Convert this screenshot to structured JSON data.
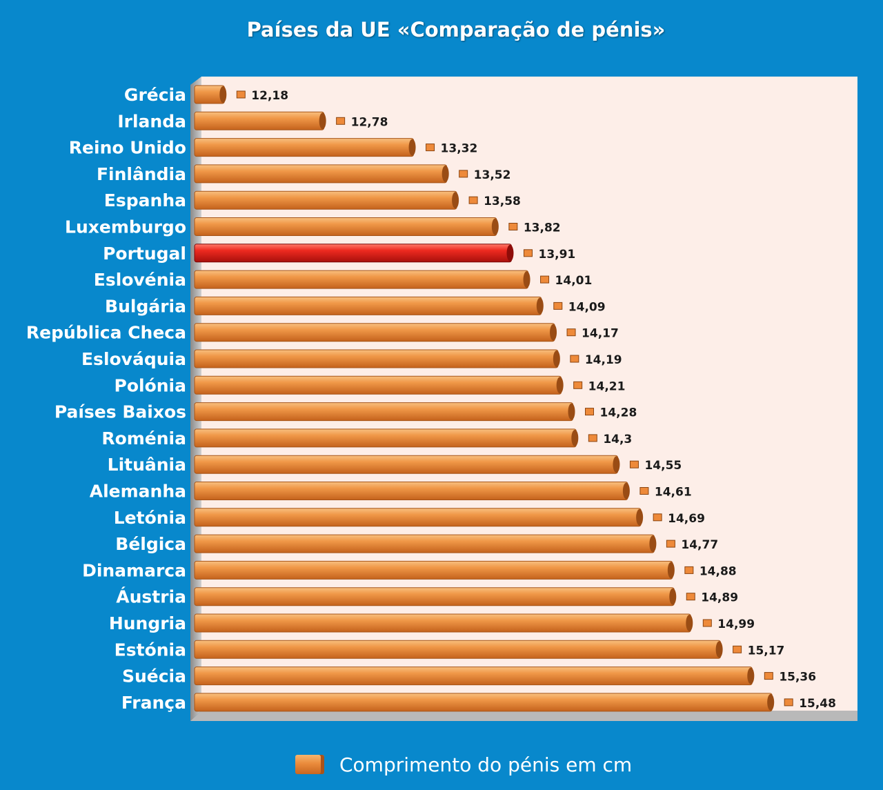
{
  "chart_data": {
    "type": "bar",
    "orientation": "horizontal",
    "title": "Países da UE «Comparação de pénis»",
    "categories": [
      "Grécia",
      "Irlanda",
      "Reino Unido",
      "Finlândia",
      "Espanha",
      "Luxemburgo",
      "Portugal",
      "Eslovénia",
      "Bulgária",
      "República Checa",
      "Eslováquia",
      "Polónia",
      "Países Baixos",
      "Roménia",
      "Lituânia",
      "Alemanha",
      "Letónia",
      "Bélgica",
      "Dinamarca",
      "Áustria",
      "Hungria",
      "Estónia",
      "Suécia",
      "França"
    ],
    "value_labels": [
      "12,18",
      "12,78",
      "13,32",
      "13,52",
      "13,58",
      "13,82",
      "13,91",
      "14,01",
      "14,09",
      "14,17",
      "14,19",
      "14,21",
      "14,28",
      "14,3",
      "14,55",
      "14,61",
      "14,69",
      "14,77",
      "14,88",
      "14,89",
      "14,99",
      "15,17",
      "15,36",
      "15,48"
    ],
    "series": [
      {
        "name": "Comprimento do pénis em cm",
        "values": [
          12.18,
          12.78,
          13.32,
          13.52,
          13.58,
          13.82,
          13.91,
          14.01,
          14.09,
          14.17,
          14.19,
          14.21,
          14.28,
          14.3,
          14.55,
          14.61,
          14.69,
          14.77,
          14.88,
          14.89,
          14.99,
          15.17,
          15.36,
          15.48
        ]
      }
    ],
    "highlight_category": "Portugal",
    "xlim": [
      12,
      15.5
    ],
    "legend_position": "bottom",
    "grid": false
  },
  "colors": {
    "background": "#0888cc",
    "plot_area": "#fdeee8",
    "bar": "#ee9040",
    "highlight_bar": "#e0201c",
    "text": "#ffffff"
  }
}
